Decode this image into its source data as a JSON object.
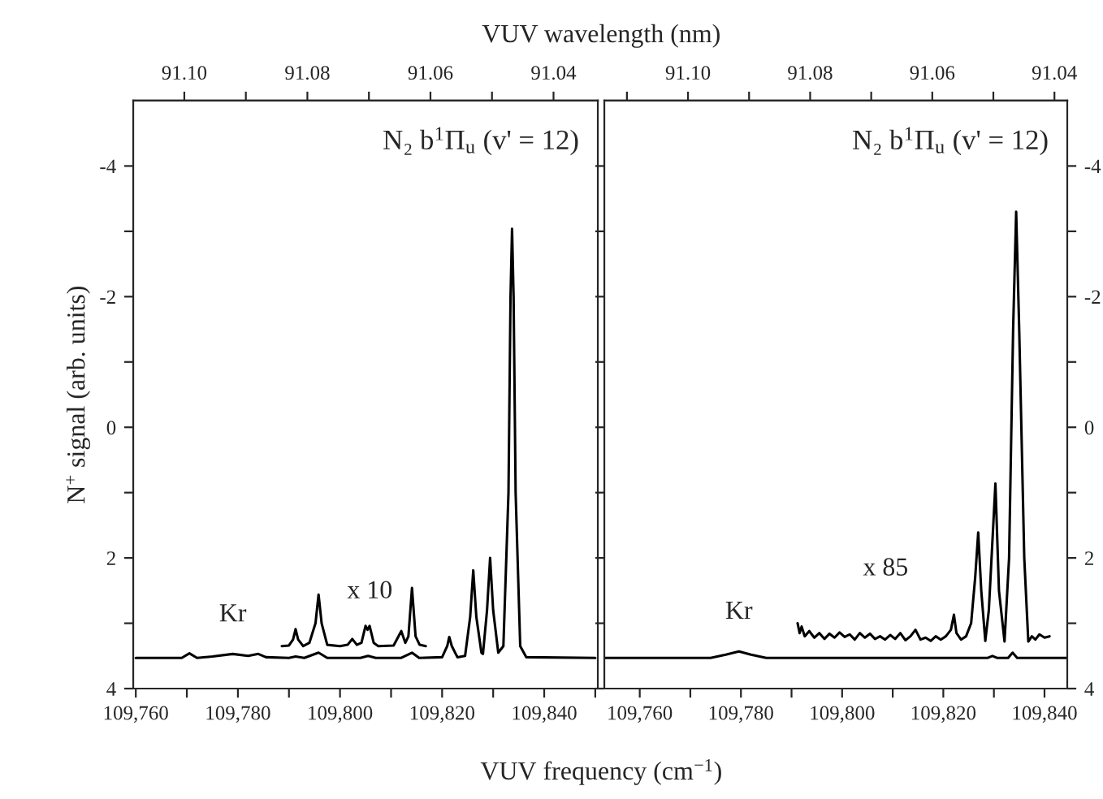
{
  "chart_data": [
    {
      "type": "line",
      "xlabel": "VUV frequency (cm$^{−1}$)",
      "ylabel": "N$^{+}$ signal (arb. units)",
      "x2label": "VUV wavelength (nm)",
      "xlim": [
        109759.5,
        109850.5
      ],
      "ylim": [
        4,
        -5
      ],
      "xticks": [
        {
          "value": 109760,
          "label": "109,760"
        },
        {
          "value": 109770,
          "label": null
        },
        {
          "value": 109780,
          "label": "109,780"
        },
        {
          "value": 109790,
          "label": null
        },
        {
          "value": 109800,
          "label": "109,800"
        },
        {
          "value": 109810,
          "label": null
        },
        {
          "value": 109820,
          "label": "109,820"
        },
        {
          "value": 109830,
          "label": null
        },
        {
          "value": 109840,
          "label": "109,840"
        },
        {
          "value": 109850,
          "label": null
        }
      ],
      "yticks": [
        {
          "value": -4,
          "label": "-4"
        },
        {
          "value": -3,
          "label": null
        },
        {
          "value": -2,
          "label": "-2"
        },
        {
          "value": -1,
          "label": null
        },
        0,
        {
          "value": 1,
          "label": null
        },
        2,
        {
          "value": 3,
          "label": null
        },
        4
      ],
      "x2lim": [
        91.1083,
        91.0328
      ],
      "x2ticks": [
        {
          "value": 91.1,
          "label": "91.10"
        },
        {
          "value": 91.09,
          "label": null
        },
        {
          "value": 91.08,
          "label": "91.08"
        },
        {
          "value": 91.07,
          "label": null
        },
        {
          "value": 91.06,
          "label": "91.06"
        },
        {
          "value": 91.05,
          "label": null
        },
        {
          "value": 91.04,
          "label": "91.04"
        }
      ],
      "annotations": [
        "N₂ b$^{1}$Π$_{u}$ (v' = 12)",
        {
          "text": "Kr",
          "x": 109779,
          "y": 3.47
        }
      ],
      "series": [
        {
          "color": "#000000",
          "x": [
            109760,
            109769,
            109770.5,
            109772,
            109775,
            109779,
            109782,
            109784,
            109785.5,
            109790,
            109791.3,
            109793,
            109795.8,
            109797.5,
            109804,
            109805.5,
            109807,
            109812,
            109814.1,
            109815.5,
            109820,
            109821.0,
            109821.4,
            109821.9,
            109823,
            109824.5,
            109825.5,
            109826.1,
            109826.7,
            109827.7,
            109828,
            109828.8,
            109829.4,
            109830.0,
            109831,
            109832,
            109833.0,
            109833.4,
            109833.7,
            109834.0,
            109834.4,
            109835.3,
            109836.5,
            109850
          ],
          "values": [
            3.53,
            3.53,
            3.46,
            3.53,
            3.51,
            3.47,
            3.5,
            3.47,
            3.52,
            3.53,
            3.51,
            3.53,
            3.45,
            3.53,
            3.53,
            3.5,
            3.53,
            3.53,
            3.45,
            3.53,
            3.52,
            3.35,
            3.21,
            3.35,
            3.52,
            3.5,
            2.9,
            2.19,
            2.9,
            3.45,
            3.47,
            2.8,
            2.0,
            2.8,
            3.45,
            3.35,
            1.0,
            -2.0,
            -3.04,
            -2.0,
            1.0,
            3.35,
            3.52,
            3.53
          ]
        },
        {
          "name": "x 10",
          "color": "#000000",
          "x": [
            109788.6,
            109790,
            109790.8,
            109791.3,
            109791.8,
            109792.8,
            109794,
            109795.2,
            109795.8,
            109796.4,
            109797.5,
            109800,
            109801.5,
            109802.4,
            109803.3,
            109804.2,
            109805,
            109805.4,
            109805.8,
            109806.6,
            109807.5,
            109810.5,
            109812,
            109812.8,
            109813.4,
            109814.1,
            109814.8,
            109815.6,
            109816.8
          ],
          "values": [
            3.35,
            3.34,
            3.25,
            3.09,
            3.25,
            3.35,
            3.3,
            3.0,
            2.56,
            3.0,
            3.33,
            3.35,
            3.33,
            3.24,
            3.33,
            3.3,
            3.04,
            3.1,
            3.04,
            3.3,
            3.35,
            3.34,
            3.12,
            3.3,
            3.2,
            2.46,
            3.2,
            3.33,
            3.35
          ]
        }
      ]
    },
    {
      "type": "line",
      "xlim": [
        109753,
        109844.5
      ],
      "ylim": [
        4,
        -5
      ],
      "xticks": [
        {
          "value": 109760,
          "label": "109,760"
        },
        {
          "value": 109770,
          "label": null
        },
        {
          "value": 109780,
          "label": "109,780"
        },
        {
          "value": 109790,
          "label": null
        },
        {
          "value": 109800,
          "label": "109,800"
        },
        {
          "value": 109810,
          "label": null
        },
        {
          "value": 109820,
          "label": "109,820"
        },
        {
          "value": 109830,
          "label": null
        },
        {
          "value": 109840,
          "label": "109,840"
        }
      ],
      "yticks": [
        {
          "value": -4,
          "label": "-4"
        },
        {
          "value": -3,
          "label": null
        },
        {
          "value": -2,
          "label": "-2"
        },
        {
          "value": -1,
          "label": null
        },
        0,
        {
          "value": 1,
          "label": null
        },
        2,
        {
          "value": 3,
          "label": null
        },
        4
      ],
      "x2lim": [
        91.1137,
        91.0379
      ],
      "x2ticks": [
        {
          "value": 91.11,
          "label": null
        },
        {
          "value": 91.1,
          "label": "91.10"
        },
        {
          "value": 91.09,
          "label": null
        },
        {
          "value": 91.08,
          "label": "91.08"
        },
        {
          "value": 91.07,
          "label": null
        },
        {
          "value": 91.06,
          "label": "91.06"
        },
        {
          "value": 91.05,
          "label": null
        },
        {
          "value": 91.04,
          "label": "91.04"
        }
      ],
      "annotations": [
        "N₂ b$^{1}$Π$_{u}$ (v' = 12)",
        {
          "text": "Kr",
          "x": 109779.6,
          "y": 3.43
        }
      ],
      "series": [
        {
          "color": "#000000",
          "x": [
            109753,
            109774,
            109777,
            109779.6,
            109782,
            109785,
            109828.8,
            109829.7,
            109830.6,
            109832.8,
            109833.7,
            109834.6,
            109844.5
          ],
          "values": [
            3.53,
            3.53,
            3.48,
            3.43,
            3.48,
            3.53,
            3.53,
            3.5,
            3.53,
            3.53,
            3.45,
            3.53,
            3.53
          ]
        },
        {
          "name": "x 85",
          "color": "#000000",
          "x": [
            109791.2,
            109791.6,
            109792,
            109792.6,
            109793.5,
            109794.5,
            109795.5,
            109796.5,
            109797.5,
            109798.5,
            109799.5,
            109800.5,
            109801.5,
            109802.5,
            109803.5,
            109804.5,
            109805.5,
            109806.5,
            109807.5,
            109808.5,
            109809.5,
            109810.5,
            109811.5,
            109812.5,
            109813.5,
            109814.5,
            109815.5,
            109816.5,
            109817.5,
            109818.5,
            109819.5,
            109820.5,
            109821.5,
            109822.1,
            109822.6,
            109823.5,
            109824.5,
            109825.5,
            109826.3,
            109826.9,
            109827.5,
            109828.3,
            109829,
            109830.3,
            109831,
            109832.1,
            109833,
            109833.8,
            109834.4,
            109835,
            109836,
            109836.8,
            109837.5,
            109838.2,
            109839,
            109840,
            109841
          ],
          "values": [
            3.0,
            3.15,
            3.05,
            3.2,
            3.12,
            3.22,
            3.15,
            3.24,
            3.16,
            3.22,
            3.14,
            3.21,
            3.17,
            3.25,
            3.15,
            3.22,
            3.16,
            3.24,
            3.2,
            3.25,
            3.18,
            3.24,
            3.15,
            3.26,
            3.2,
            3.1,
            3.25,
            3.22,
            3.27,
            3.2,
            3.25,
            3.2,
            3.1,
            2.87,
            3.15,
            3.25,
            3.2,
            3.0,
            2.3,
            1.61,
            2.5,
            3.27,
            2.8,
            0.86,
            2.5,
            3.28,
            2.0,
            -1.5,
            -3.3,
            -1.5,
            2.0,
            3.28,
            3.2,
            3.25,
            3.17,
            3.22,
            3.2
          ]
        }
      ]
    }
  ]
}
